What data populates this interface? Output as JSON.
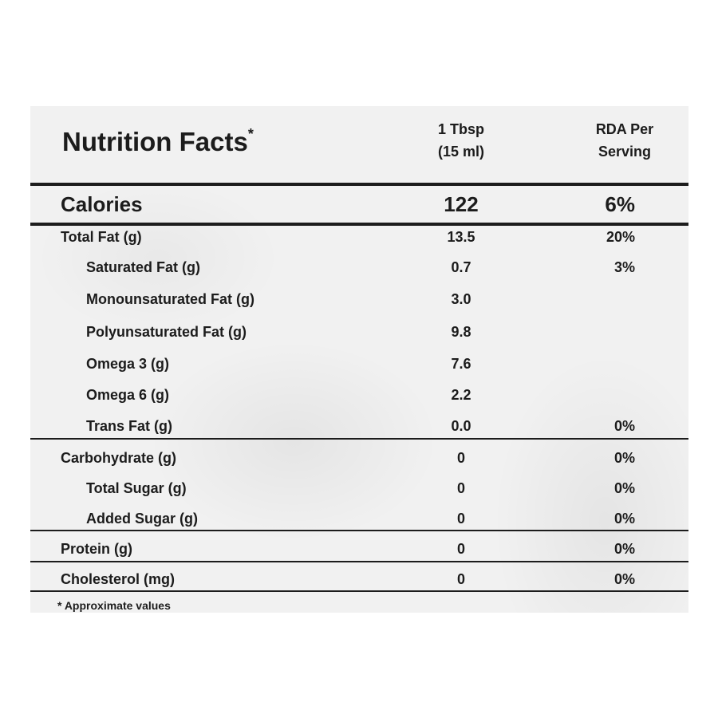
{
  "panel": {
    "title": "Nutrition Facts",
    "title_mark": "*",
    "header_serving": [
      "1 Tbsp",
      "(15 ml)"
    ],
    "header_rda": [
      "RDA Per",
      "Serving"
    ],
    "calories": {
      "label": "Calories",
      "amount": "122",
      "rda": "6%"
    },
    "rows": [
      {
        "label": "Total Fat (g)",
        "amount": "13.5",
        "rda": "20%",
        "indent": false
      },
      {
        "label": "Saturated Fat (g)",
        "amount": "0.7",
        "rda": "3%",
        "indent": true
      },
      {
        "label": "Monounsaturated Fat (g)",
        "amount": "3.0",
        "rda": "",
        "indent": true
      },
      {
        "label": "Polyunsaturated Fat (g)",
        "amount": "9.8",
        "rda": "",
        "indent": true
      },
      {
        "label": "Omega 3 (g)",
        "amount": "7.6",
        "rda": "",
        "indent": true
      },
      {
        "label": "Omega 6 (g)",
        "amount": "2.2",
        "rda": "",
        "indent": true
      },
      {
        "label": "Trans Fat (g)",
        "amount": "0.0",
        "rda": "0%",
        "indent": true
      },
      {
        "label": "Carbohydrate (g)",
        "amount": "0",
        "rda": "0%",
        "indent": false
      },
      {
        "label": "Total Sugar (g)",
        "amount": "0",
        "rda": "0%",
        "indent": true
      },
      {
        "label": "Added Sugar (g)",
        "amount": "0",
        "rda": "0%",
        "indent": true
      },
      {
        "label": "Protein (g)",
        "amount": "0",
        "rda": "0%",
        "indent": false
      },
      {
        "label": "Cholesterol (mg)",
        "amount": "0",
        "rda": "0%",
        "indent": false
      }
    ],
    "footnote": "* Approximate values"
  }
}
